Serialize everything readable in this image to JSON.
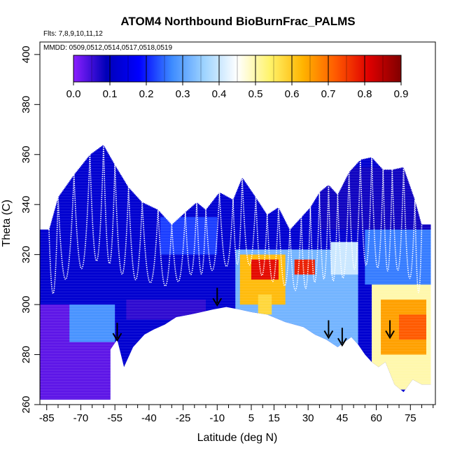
{
  "chart_data": {
    "type": "heatmap",
    "title": "ATOM4 Northbound BioBurnFrac_PALMS",
    "flights_label": "Flts: 7,8,9,10,11,12",
    "dates_label": "MMDD: 0509,0512,0514,0517,0518,0519",
    "xlabel": "Latitude (deg N)",
    "ylabel": "Theta (C)",
    "xlim": [
      -88,
      86
    ],
    "ylim": [
      260,
      405
    ],
    "x_ticks": [
      -85,
      -70,
      -55,
      -40,
      -25,
      -10,
      5,
      15,
      30,
      45,
      60,
      75
    ],
    "x_tick_labels": [
      "-85",
      "-70",
      "-55",
      "-40",
      "-25",
      "-10",
      "5",
      "15",
      "30",
      "45",
      "60",
      "75"
    ],
    "y_ticks": [
      260,
      280,
      300,
      320,
      340,
      360,
      380,
      400
    ],
    "y_tick_labels": [
      "260",
      "280",
      "300",
      "320",
      "340",
      "360",
      "380",
      "400"
    ],
    "colorbar": {
      "range": [
        0,
        0.9
      ],
      "ticks": [
        0.0,
        0.1,
        0.2,
        0.3,
        0.4,
        0.5,
        0.6,
        0.7,
        0.8,
        0.9
      ],
      "tick_labels": [
        "0.0",
        "0.1",
        "0.2",
        "0.3",
        "0.4",
        "0.5",
        "0.6",
        "0.7",
        "0.8",
        "0.9"
      ],
      "colors": [
        "#8b1fff",
        "#0000b8",
        "#0000ff",
        "#3d8bff",
        "#9fd4ff",
        "#ffffff",
        "#fff36a",
        "#ffb400",
        "#ff5a00",
        "#e00000",
        "#800000"
      ]
    },
    "grid": false,
    "surface_boundary": [
      {
        "lat": -57,
        "theta": 282
      },
      {
        "lat": -54,
        "theta": 286
      },
      {
        "lat": -51,
        "theta": 275
      },
      {
        "lat": -47,
        "theta": 283
      },
      {
        "lat": -42,
        "theta": 288
      },
      {
        "lat": -38,
        "theta": 290
      },
      {
        "lat": -33,
        "theta": 292
      },
      {
        "lat": -28,
        "theta": 295
      },
      {
        "lat": -22,
        "theta": 296
      },
      {
        "lat": -17,
        "theta": 297
      },
      {
        "lat": -12,
        "theta": 298
      },
      {
        "lat": -6,
        "theta": 299
      },
      {
        "lat": 0,
        "theta": 298
      },
      {
        "lat": 5,
        "theta": 297
      },
      {
        "lat": 12,
        "theta": 296
      },
      {
        "lat": 20,
        "theta": 293
      },
      {
        "lat": 28,
        "theta": 291
      },
      {
        "lat": 33,
        "theta": 288
      },
      {
        "lat": 38,
        "theta": 286
      },
      {
        "lat": 43,
        "theta": 283
      },
      {
        "lat": 46,
        "theta": 285
      },
      {
        "lat": 49,
        "theta": 287
      },
      {
        "lat": 52,
        "theta": 284
      },
      {
        "lat": 55,
        "theta": 280
      },
      {
        "lat": 58,
        "theta": 277
      },
      {
        "lat": 61,
        "theta": 275
      },
      {
        "lat": 64,
        "theta": 277
      },
      {
        "lat": 68,
        "theta": 268
      },
      {
        "lat": 72,
        "theta": 265
      },
      {
        "lat": 76,
        "theta": 270
      },
      {
        "lat": 80,
        "theta": 268
      }
    ],
    "profile_tops": [
      {
        "lat": -84,
        "theta": 330
      },
      {
        "lat": -80,
        "theta": 343
      },
      {
        "lat": -73,
        "theta": 352
      },
      {
        "lat": -66,
        "theta": 360
      },
      {
        "lat": -60,
        "theta": 364
      },
      {
        "lat": -55,
        "theta": 356
      },
      {
        "lat": -49,
        "theta": 347
      },
      {
        "lat": -43,
        "theta": 341
      },
      {
        "lat": -36,
        "theta": 338
      },
      {
        "lat": -30,
        "theta": 332
      },
      {
        "lat": -24,
        "theta": 337
      },
      {
        "lat": -19,
        "theta": 341
      },
      {
        "lat": -15,
        "theta": 338
      },
      {
        "lat": -9,
        "theta": 345
      },
      {
        "lat": -3,
        "theta": 342
      },
      {
        "lat": 1,
        "theta": 351
      },
      {
        "lat": 7,
        "theta": 343
      },
      {
        "lat": 12,
        "theta": 336
      },
      {
        "lat": 17,
        "theta": 339
      },
      {
        "lat": 22,
        "theta": 330
      },
      {
        "lat": 27,
        "theta": 335
      },
      {
        "lat": 31,
        "theta": 339
      },
      {
        "lat": 35,
        "theta": 345
      },
      {
        "lat": 39,
        "theta": 348
      },
      {
        "lat": 43,
        "theta": 344
      },
      {
        "lat": 48,
        "theta": 353
      },
      {
        "lat": 53,
        "theta": 358
      },
      {
        "lat": 58,
        "theta": 359
      },
      {
        "lat": 63,
        "theta": 354
      },
      {
        "lat": 67,
        "theta": 354
      },
      {
        "lat": 72,
        "theta": 355
      },
      {
        "lat": 77,
        "theta": 342
      },
      {
        "lat": 80,
        "theta": 332
      }
    ],
    "regions": [
      {
        "lat_min": -88,
        "lat_max": 86,
        "theta_min": 260,
        "theta_max": 366,
        "value": 0.12
      },
      {
        "lat_min": -88,
        "lat_max": -55,
        "theta_min": 260,
        "theta_max": 300,
        "value": 0.03
      },
      {
        "lat_min": -75,
        "lat_max": -55,
        "theta_min": 285,
        "theta_max": 300,
        "value": 0.28
      },
      {
        "lat_min": -50,
        "lat_max": -15,
        "theta_min": 294,
        "theta_max": 302,
        "value": 0.06
      },
      {
        "lat_min": -35,
        "lat_max": -10,
        "theta_min": 320,
        "theta_max": 335,
        "value": 0.22
      },
      {
        "lat_min": -2,
        "lat_max": 52,
        "theta_min": 283,
        "theta_max": 322,
        "value": 0.32
      },
      {
        "lat_min": 0,
        "lat_max": 20,
        "theta_min": 300,
        "theta_max": 320,
        "value": 0.62
      },
      {
        "lat_min": 5,
        "lat_max": 17,
        "theta_min": 310,
        "theta_max": 318,
        "value": 0.8
      },
      {
        "lat_min": 24,
        "lat_max": 33,
        "theta_min": 312,
        "theta_max": 318,
        "value": 0.78
      },
      {
        "lat_min": 8,
        "lat_max": 14,
        "theta_min": 296,
        "theta_max": 304,
        "value": 0.58
      },
      {
        "lat_min": 40,
        "lat_max": 52,
        "theta_min": 312,
        "theta_max": 325,
        "value": 0.4
      },
      {
        "lat_min": 58,
        "lat_max": 84,
        "theta_min": 266,
        "theta_max": 308,
        "value": 0.5
      },
      {
        "lat_min": 62,
        "lat_max": 82,
        "theta_min": 280,
        "theta_max": 302,
        "value": 0.65
      },
      {
        "lat_min": 70,
        "lat_max": 82,
        "theta_min": 286,
        "theta_max": 296,
        "value": 0.72
      },
      {
        "lat_min": 55,
        "lat_max": 84,
        "theta_min": 308,
        "theta_max": 330,
        "value": 0.26
      },
      {
        "lat_min": 35,
        "lat_max": 84,
        "theta_min": 330,
        "theta_max": 355,
        "value": 0.08
      }
    ],
    "arrows": [
      {
        "lat": -54,
        "theta": 286
      },
      {
        "lat": -10,
        "theta": 300
      },
      {
        "lat": 39,
        "theta": 287
      },
      {
        "lat": 45,
        "theta": 284
      },
      {
        "lat": 66,
        "theta": 287
      }
    ]
  }
}
